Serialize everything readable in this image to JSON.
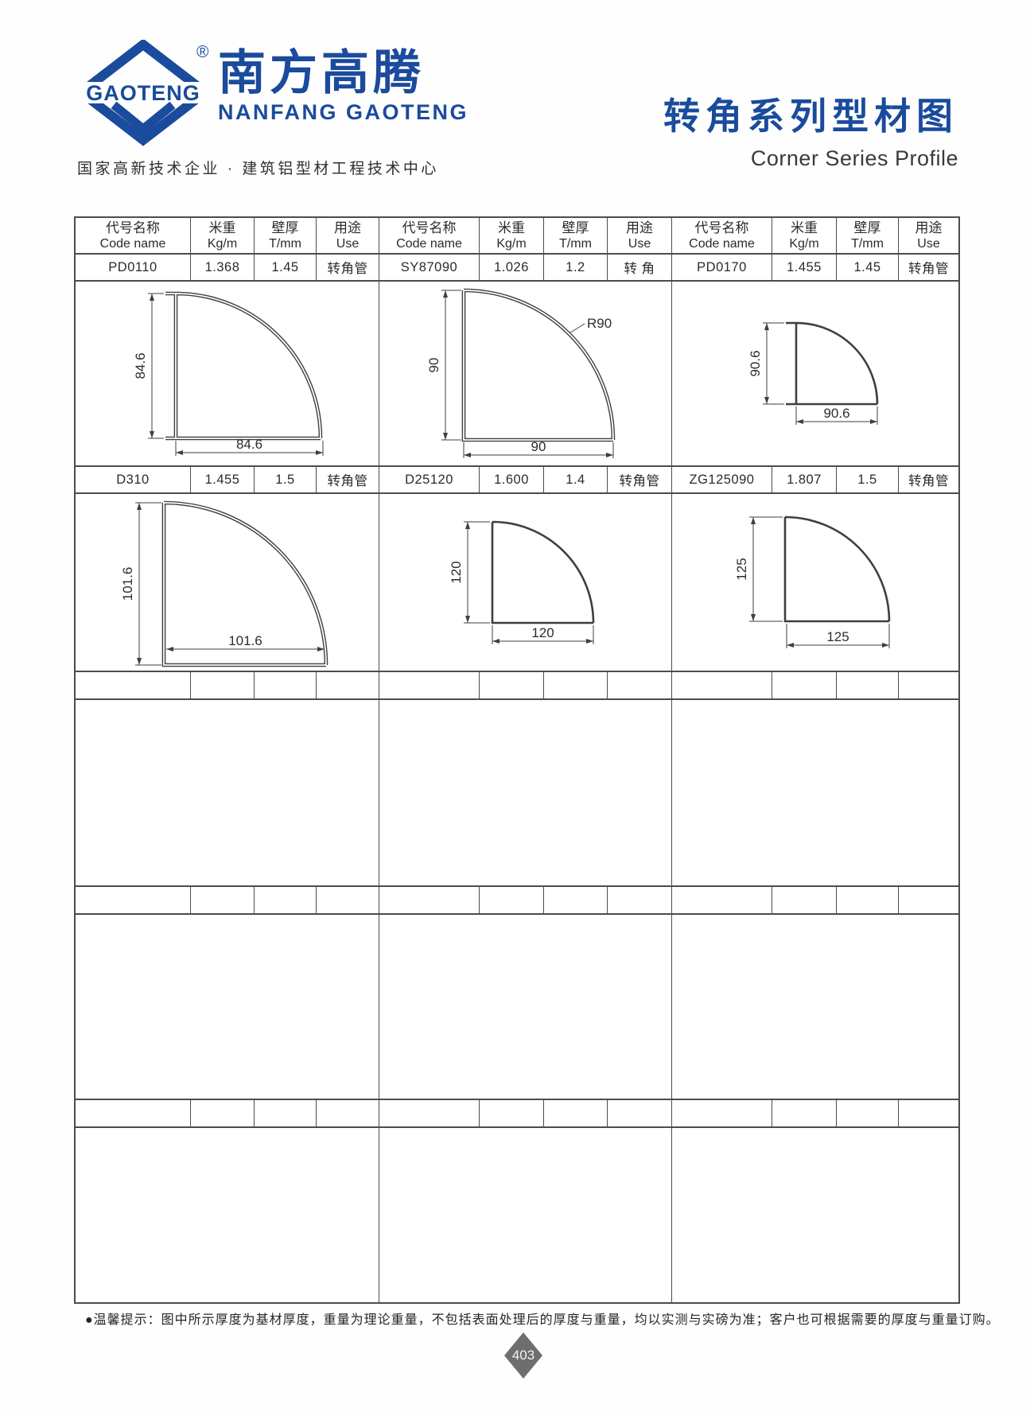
{
  "brand": {
    "logo_text": "GAOTENG",
    "registered_mark": "®",
    "company_cn": "南方高腾",
    "company_en": "NANFANG GAOTENG",
    "tagline": "国家高新技术企业 · 建筑铝型材工程技术中心",
    "brand_color": "#1a4b9c"
  },
  "page_header": {
    "title_cn": "转角系列型材图",
    "title_en": "Corner Series Profile"
  },
  "table": {
    "column_headers": {
      "code_cn": "代号名称",
      "code_en": "Code name",
      "weight_cn": "米重",
      "weight_en": "Kg/m",
      "thickness_cn": "壁厚",
      "thickness_en": "T/mm",
      "use_cn": "用途",
      "use_en": "Use"
    },
    "rows": [
      [
        {
          "code": "PD0110",
          "kg_m": "1.368",
          "t_mm": "1.45",
          "use": "转角管"
        },
        {
          "code": "SY87090",
          "kg_m": "1.026",
          "t_mm": "1.2",
          "use": "转 角"
        },
        {
          "code": "PD0170",
          "kg_m": "1.455",
          "t_mm": "1.45",
          "use": "转角管"
        }
      ],
      [
        {
          "code": "D310",
          "kg_m": "1.455",
          "t_mm": "1.5",
          "use": "转角管"
        },
        {
          "code": "D25120",
          "kg_m": "1.600",
          "t_mm": "1.4",
          "use": "转角管"
        },
        {
          "code": "ZG125090",
          "kg_m": "1.807",
          "t_mm": "1.5",
          "use": "转角管"
        }
      ]
    ],
    "empty_row_sets": 3
  },
  "drawings": [
    {
      "code": "PD0110",
      "vdim": "84.6",
      "hdim": "84.6"
    },
    {
      "code": "SY87090",
      "vdim": "90",
      "hdim": "90",
      "radius_label": "R90"
    },
    {
      "code": "PD0170",
      "vdim": "90.6",
      "hdim": "90.6"
    },
    {
      "code": "D310",
      "vdim": "101.6",
      "hdim": "101.6"
    },
    {
      "code": "D25120",
      "vdim": "120",
      "hdim": "120"
    },
    {
      "code": "ZG125090",
      "vdim": "125",
      "hdim": "125"
    }
  ],
  "footer": {
    "note": "●温馨提示：图中所示厚度为基材厚度，重量为理论重量，不包括表面处理后的厚度与重量，均以实测与实磅为准；客户也可根据需要的厚度与重量订购。",
    "page_number": "403"
  }
}
